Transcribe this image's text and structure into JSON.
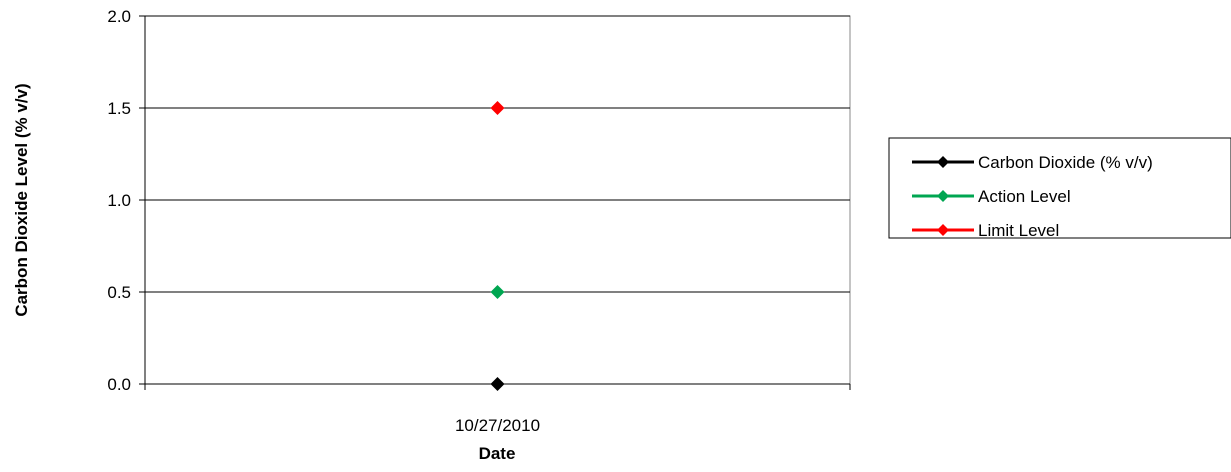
{
  "chart_data": {
    "type": "line",
    "title": "",
    "xlabel": "Date",
    "ylabel": "Carbon Dioxide Level (% v/v)",
    "ylim": [
      0,
      2
    ],
    "yticks": [
      "0.0",
      "0.5",
      "1.0",
      "1.5",
      "2.0"
    ],
    "categories": [
      "10/27/2010"
    ],
    "grid": "horizontal major gridlines on",
    "legend_position": "right",
    "series": [
      {
        "name": "Carbon Dioxide (% v/v)",
        "values": [
          0.0
        ],
        "color": "#000000",
        "marker": "diamond"
      },
      {
        "name": "Action Level",
        "values": [
          0.5
        ],
        "color": "#00a651",
        "marker": "diamond"
      },
      {
        "name": "Limit Level",
        "values": [
          1.5
        ],
        "color": "#ff0000",
        "marker": "diamond"
      }
    ]
  }
}
